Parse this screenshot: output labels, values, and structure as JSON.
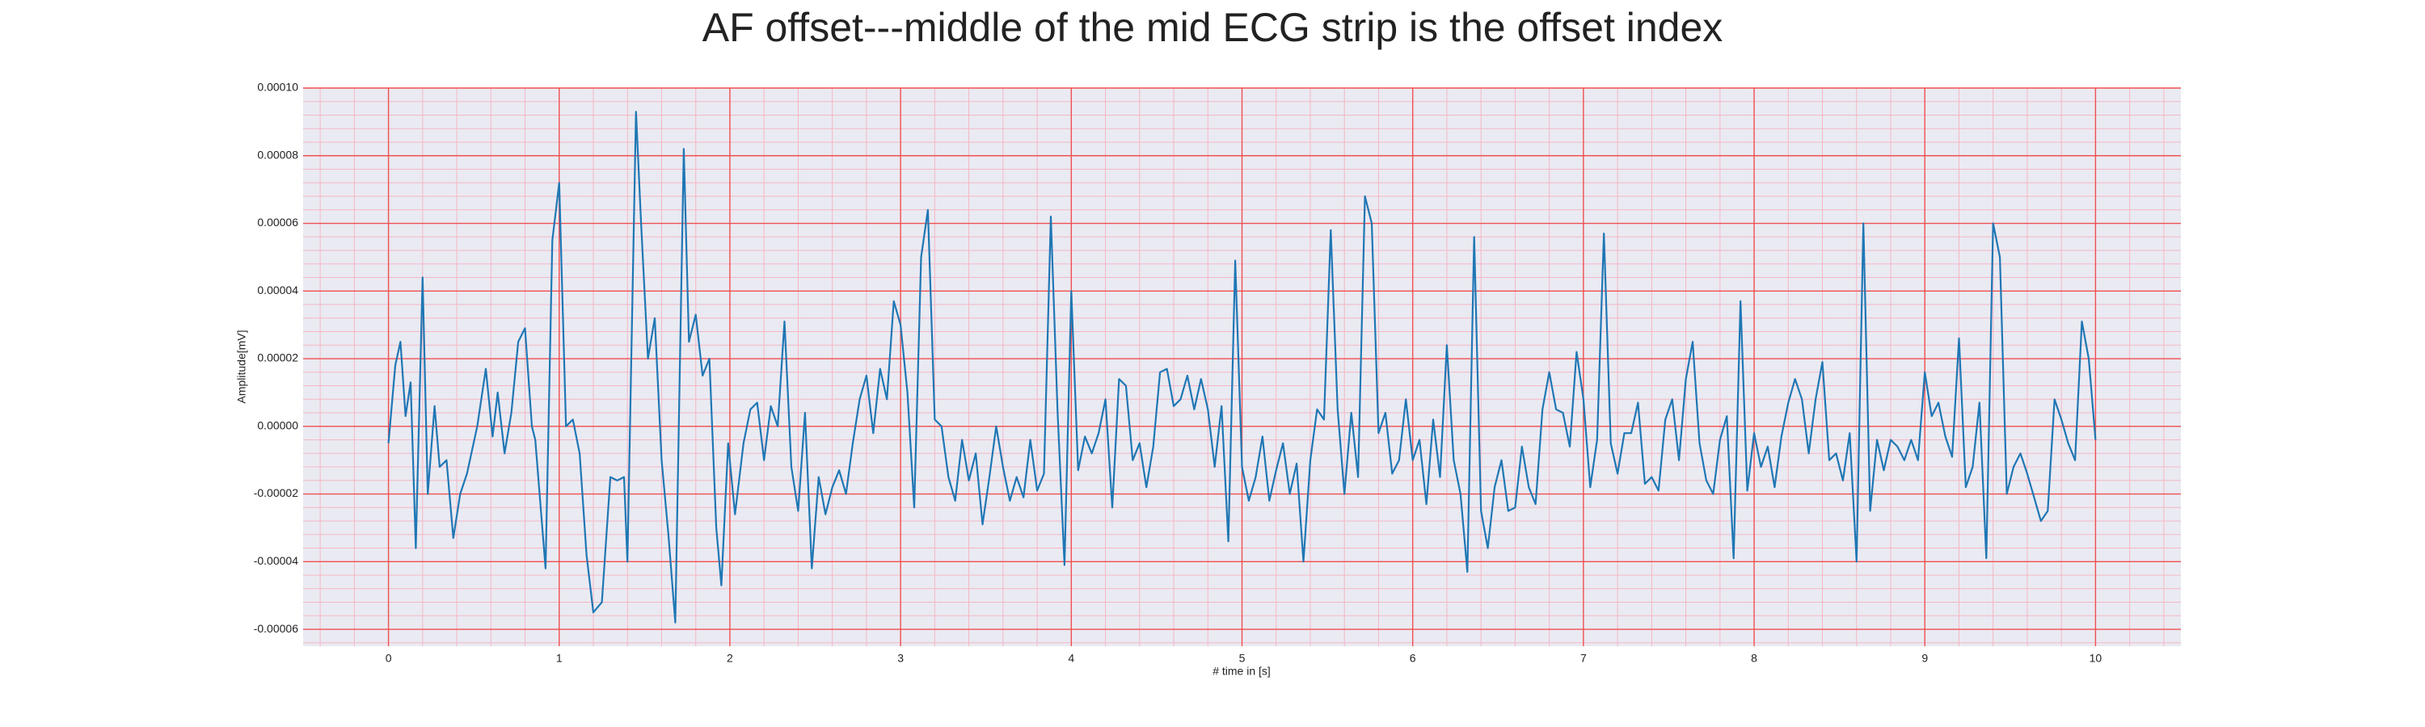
{
  "chart_data": {
    "type": "line",
    "title": "AF offset---middle of the mid ECG strip is the offset index",
    "xlabel": "# time in [s]",
    "ylabel": "Amplitude[mV]",
    "color": "#1f77b4",
    "grid": true,
    "minor_grid": true,
    "xlim": [
      -0.5,
      10.5
    ],
    "ylim": [
      -6.5e-05,
      0.0001
    ],
    "xticks": [
      0,
      1,
      2,
      3,
      4,
      5,
      6,
      7,
      8,
      9,
      10
    ],
    "yticks": [
      {
        "value": -6e-05,
        "label": "-0.00006"
      },
      {
        "value": -4e-05,
        "label": "-0.00004"
      },
      {
        "value": -2e-05,
        "label": "-0.00002"
      },
      {
        "value": 0,
        "label": "0.00000"
      },
      {
        "value": 2e-05,
        "label": "0.00002"
      },
      {
        "value": 4e-05,
        "label": "0.00004"
      },
      {
        "value": 6e-05,
        "label": "0.00006"
      },
      {
        "value": 8e-05,
        "label": "0.00008"
      },
      {
        "value": 0.0001,
        "label": "0.00010"
      }
    ],
    "x": [
      0.0,
      0.04,
      0.07,
      0.1,
      0.13,
      0.16,
      0.2,
      0.23,
      0.27,
      0.3,
      0.34,
      0.38,
      0.42,
      0.46,
      0.52,
      0.57,
      0.61,
      0.64,
      0.68,
      0.72,
      0.76,
      0.8,
      0.84,
      0.86,
      0.92,
      0.96,
      1.0,
      1.04,
      1.08,
      1.12,
      1.16,
      1.2,
      1.25,
      1.3,
      1.34,
      1.38,
      1.4,
      1.45,
      1.48,
      1.52,
      1.56,
      1.6,
      1.64,
      1.68,
      1.73,
      1.76,
      1.8,
      1.84,
      1.88,
      1.92,
      1.95,
      1.99,
      2.03,
      2.08,
      2.12,
      2.16,
      2.2,
      2.24,
      2.28,
      2.32,
      2.36,
      2.4,
      2.44,
      2.48,
      2.52,
      2.56,
      2.6,
      2.64,
      2.68,
      2.72,
      2.76,
      2.8,
      2.84,
      2.88,
      2.92,
      2.96,
      3.0,
      3.04,
      3.08,
      3.12,
      3.16,
      3.2,
      3.24,
      3.28,
      3.32,
      3.36,
      3.4,
      3.44,
      3.48,
      3.52,
      3.56,
      3.6,
      3.64,
      3.68,
      3.72,
      3.76,
      3.8,
      3.84,
      3.88,
      3.92,
      3.96,
      4.0,
      4.04,
      4.08,
      4.12,
      4.16,
      4.2,
      4.24,
      4.28,
      4.32,
      4.36,
      4.4,
      4.44,
      4.48,
      4.52,
      4.56,
      4.6,
      4.64,
      4.68,
      4.72,
      4.76,
      4.8,
      4.84,
      4.88,
      4.92,
      4.96,
      5.0,
      5.04,
      5.08,
      5.12,
      5.16,
      5.2,
      5.24,
      5.28,
      5.32,
      5.36,
      5.4,
      5.44,
      5.48,
      5.52,
      5.56,
      5.6,
      5.64,
      5.68,
      5.72,
      5.76,
      5.8,
      5.84,
      5.88,
      5.92,
      5.96,
      6.0,
      6.04,
      6.08,
      6.12,
      6.16,
      6.2,
      6.24,
      6.28,
      6.32,
      6.36,
      6.4,
      6.44,
      6.48,
      6.52,
      6.56,
      6.6,
      6.64,
      6.68,
      6.72,
      6.76,
      6.8,
      6.84,
      6.88,
      6.92,
      6.96,
      7.0,
      7.04,
      7.08,
      7.12,
      7.16,
      7.2,
      7.24,
      7.28,
      7.32,
      7.36,
      7.4,
      7.44,
      7.48,
      7.52,
      7.56,
      7.6,
      7.64,
      7.68,
      7.72,
      7.76,
      7.8,
      7.84,
      7.88,
      7.92,
      7.96,
      8.0,
      8.04,
      8.08,
      8.12,
      8.16,
      8.2,
      8.24,
      8.28,
      8.32,
      8.36,
      8.4,
      8.44,
      8.48,
      8.52,
      8.56,
      8.6,
      8.64,
      8.68,
      8.72,
      8.76,
      8.8,
      8.84,
      8.88,
      8.92,
      8.96,
      9.0,
      9.04,
      9.08,
      9.12,
      9.16,
      9.2,
      9.24,
      9.28,
      9.32,
      9.36,
      9.4,
      9.44,
      9.48,
      9.52,
      9.56,
      9.6,
      9.64,
      9.68,
      9.72,
      9.76,
      9.8,
      9.84,
      9.88,
      9.92,
      9.96,
      10.0
    ],
    "values": [
      -5e-06,
      1.8e-05,
      2.5e-05,
      3e-06,
      1.3e-05,
      -3.6e-05,
      4.4e-05,
      -2e-05,
      6e-06,
      -1.2e-05,
      -1e-05,
      -3.3e-05,
      -2e-05,
      -1.4e-05,
      0,
      1.7e-05,
      -3e-06,
      1e-05,
      -8e-06,
      4e-06,
      2.5e-05,
      2.9e-05,
      0,
      -4e-06,
      -4.2e-05,
      5.5e-05,
      7.2e-05,
      0,
      2e-06,
      -8e-06,
      -3.8e-05,
      -5.5e-05,
      -5.2e-05,
      -1.5e-05,
      -1.6e-05,
      -1.5e-05,
      -4e-05,
      9.3e-05,
      6e-05,
      2e-05,
      3.2e-05,
      -1e-05,
      -3.2e-05,
      -5.8e-05,
      8.2e-05,
      2.5e-05,
      3.3e-05,
      1.5e-05,
      2e-05,
      -3e-05,
      -4.7e-05,
      -5e-06,
      -2.6e-05,
      -5e-06,
      5e-06,
      7e-06,
      -1e-05,
      6e-06,
      0,
      3.1e-05,
      -1.2e-05,
      -2.5e-05,
      4e-06,
      -4.2e-05,
      -1.5e-05,
      -2.6e-05,
      -1.8e-05,
      -1.3e-05,
      -2e-05,
      -5e-06,
      8e-06,
      1.5e-05,
      -2e-06,
      1.7e-05,
      8e-06,
      3.7e-05,
      3e-05,
      1e-05,
      -2.4e-05,
      5e-05,
      6.4e-05,
      2e-06,
      0,
      -1.5e-05,
      -2.2e-05,
      -4e-06,
      -1.6e-05,
      -8e-06,
      -2.9e-05,
      -1.5e-05,
      0,
      -1.2e-05,
      -2.2e-05,
      -1.5e-05,
      -2.1e-05,
      -4e-06,
      -1.9e-05,
      -1.4e-05,
      6.2e-05,
      4e-06,
      -4.1e-05,
      4e-05,
      -1.3e-05,
      -3e-06,
      -8e-06,
      -2e-06,
      8e-06,
      -2.4e-05,
      1.4e-05,
      1.2e-05,
      -1e-05,
      -5e-06,
      -1.8e-05,
      -6e-06,
      1.6e-05,
      1.7e-05,
      6e-06,
      8e-06,
      1.5e-05,
      5e-06,
      1.4e-05,
      5e-06,
      -1.2e-05,
      6e-06,
      -3.4e-05,
      4.9e-05,
      -1.2e-05,
      -2.2e-05,
      -1.5e-05,
      -3e-06,
      -2.2e-05,
      -1.3e-05,
      -5e-06,
      -2e-05,
      -1.1e-05,
      -4e-05,
      -1e-05,
      5e-06,
      2e-06,
      5.8e-05,
      5e-06,
      -2e-05,
      4e-06,
      -1.5e-05,
      6.8e-05,
      6e-05,
      -2e-06,
      4e-06,
      -1.4e-05,
      -1e-05,
      8e-06,
      -1e-05,
      -4e-06,
      -2.3e-05,
      2e-06,
      -1.5e-05,
      2.4e-05,
      -1e-05,
      -2e-05,
      -4.3e-05,
      5.6e-05,
      -2.5e-05,
      -3.6e-05,
      -1.8e-05,
      -1e-05,
      -2.5e-05,
      -2.4e-05,
      -6e-06,
      -1.8e-05,
      -2.3e-05,
      5e-06,
      1.6e-05,
      5e-06,
      4e-06,
      -6e-06,
      2.2e-05,
      8e-06,
      -1.8e-05,
      -4e-06,
      5.7e-05,
      -5e-06,
      -1.4e-05,
      -2e-06,
      -2e-06,
      7e-06,
      -1.7e-05,
      -1.5e-05,
      -1.9e-05,
      2e-06,
      8e-06,
      -1e-05,
      1.4e-05,
      2.5e-05,
      -5e-06,
      -1.6e-05,
      -2e-05,
      -4e-06,
      3e-06,
      -3.9e-05,
      3.7e-05,
      -1.9e-05,
      -2e-06,
      -1.2e-05,
      -6e-06,
      -1.8e-05,
      -3e-06,
      7e-06,
      1.4e-05,
      8e-06,
      -8e-06,
      8e-06,
      1.9e-05,
      -1e-05,
      -8e-06,
      -1.6e-05,
      -2e-06,
      -4e-05,
      6e-05,
      -2.5e-05,
      -4e-06,
      -1.3e-05,
      -4e-06,
      -6e-06,
      -1e-05,
      -4e-06,
      -1e-05,
      1.6e-05,
      3e-06,
      7e-06,
      -3e-06,
      -9e-06,
      2.6e-05,
      -1.8e-05,
      -1.2e-05,
      7e-06,
      -3.9e-05,
      6e-05,
      5e-05,
      -2e-05,
      -1.2e-05,
      -8e-06,
      -1.4e-05,
      -2.1e-05,
      -2.8e-05,
      -2.5e-05,
      8e-06,
      2e-06,
      -5e-06,
      -1e-05,
      3.1e-05,
      2e-05,
      -4e-06
    ]
  }
}
